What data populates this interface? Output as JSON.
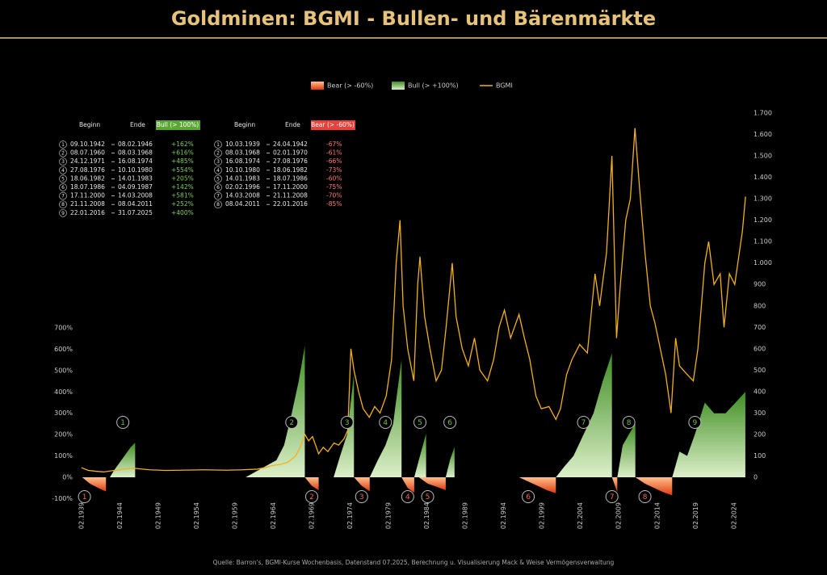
{
  "chart_data": {
    "type": "combo",
    "title": "Goldminen: BGMI - Bullen- und Bärenmärkte",
    "source": "Quelle: Barron's, BGMI-Kurse Wochenbasis, Datenstand 07.2025, Berechnung u. Visualisierung Mack & Weise Vermögensverwaltung",
    "xlim": [
      1938.7,
      2025.8
    ],
    "xticks": [
      {
        "value": 1939.1,
        "label": "02.1939"
      },
      {
        "value": 1944.1,
        "label": "02.1944"
      },
      {
        "value": 1949.1,
        "label": "02.1949"
      },
      {
        "value": 1954.1,
        "label": "02.1954"
      },
      {
        "value": 1959.1,
        "label": "02.1959"
      },
      {
        "value": 1964.1,
        "label": "02.1964"
      },
      {
        "value": 1969.1,
        "label": "02.1969"
      },
      {
        "value": 1974.1,
        "label": "02.1974"
      },
      {
        "value": 1979.1,
        "label": "02.1979"
      },
      {
        "value": 1984.1,
        "label": "02.1984"
      },
      {
        "value": 1989.1,
        "label": "02.1989"
      },
      {
        "value": 1994.1,
        "label": "02.1994"
      },
      {
        "value": 1999.1,
        "label": "02.1999"
      },
      {
        "value": 2004.1,
        "label": "02.2004"
      },
      {
        "value": 2009.1,
        "label": "02.2009"
      },
      {
        "value": 2014.1,
        "label": "02.2014"
      },
      {
        "value": 2019.1,
        "label": "02.2019"
      },
      {
        "value": 2024.1,
        "label": "02.2024"
      }
    ],
    "ylim": [
      -100,
      700
    ],
    "yticks": [
      {
        "value": -100,
        "label": "-100%"
      },
      {
        "value": 0,
        "label": "0%"
      },
      {
        "value": 100,
        "label": "100%"
      },
      {
        "value": 200,
        "label": "200%"
      },
      {
        "value": 300,
        "label": "300%"
      },
      {
        "value": 400,
        "label": "400%"
      },
      {
        "value": 500,
        "label": "500%"
      },
      {
        "value": 600,
        "label": "600%"
      },
      {
        "value": 700,
        "label": "700%"
      }
    ],
    "y2lim": [
      0,
      1700
    ],
    "y2ticks": [
      0,
      100,
      200,
      300,
      400,
      500,
      600,
      700,
      800,
      900,
      {
        "value": 1000,
        "label": "1.000"
      },
      {
        "value": 1100,
        "label": "1.100"
      },
      {
        "value": 1200,
        "label": "1.200"
      },
      {
        "value": 1300,
        "label": "1.300"
      },
      {
        "value": 1400,
        "label": "1.400"
      },
      {
        "value": 1500,
        "label": "1.500"
      },
      {
        "value": 1600,
        "label": "1.600"
      },
      {
        "value": 1700,
        "label": "1.700"
      }
    ],
    "series": [
      {
        "name": "Bear (> -60%)",
        "type": "area",
        "color": "#f06a2a",
        "x": [
          1939.2,
          1940.2,
          1941.3,
          1942.3,
          null,
          1968.2,
          1969.1,
          1970.0,
          null,
          1974.6,
          1975.6,
          1976.65,
          null,
          1980.8,
          1981.6,
          1982.45,
          null,
          1983.05,
          1984.2,
          1985.4,
          1986.55,
          null,
          1996.1,
          1997.3,
          1998.5,
          1999.7,
          2000.9,
          null,
          2008.2,
          2008.9,
          null,
          2011.25,
          2012.5,
          2013.7,
          2014.9,
          2016.05
        ],
        "values": [
          0,
          -30,
          -50,
          -67,
          null,
          0,
          -40,
          -61,
          null,
          0,
          -40,
          -66,
          null,
          0,
          -50,
          -73,
          null,
          0,
          -30,
          -45,
          -60,
          null,
          0,
          -20,
          -40,
          -60,
          -75,
          null,
          0,
          -70,
          null,
          0,
          -30,
          -50,
          -70,
          -85
        ]
      },
      {
        "name": "Bull (> +100%)",
        "type": "area",
        "color": "#5aa832",
        "x": [
          1942.8,
          1943.5,
          1944.5,
          1945.5,
          1946.1,
          null,
          1960.5,
          1962,
          1963.5,
          1964.5,
          1965.5,
          1966.5,
          1967.4,
          1968.2,
          null,
          1971.95,
          1972.8,
          1973.7,
          1974.6,
          null,
          1976.65,
          1977.7,
          1978.7,
          1979.7,
          1980.8,
          null,
          1982.45,
          1983.2,
          1984.0,
          null,
          1986.55,
          1987.1,
          1987.7,
          null,
          2000.9,
          2002,
          2003.2,
          2004.5,
          2005.8,
          2007,
          2008.2,
          null,
          2008.9,
          2009.6,
          2010.4,
          2011.25,
          null,
          2016.05,
          2017,
          2018,
          2019,
          2020.3,
          2021.5,
          2023,
          2024.3,
          2025.58
        ],
        "values": [
          0,
          40,
          90,
          140,
          162,
          null,
          0,
          30,
          60,
          80,
          150,
          300,
          450,
          616,
          null,
          0,
          100,
          200,
          485,
          null,
          0,
          80,
          150,
          250,
          554,
          null,
          0,
          100,
          205,
          null,
          0,
          80,
          142,
          null,
          0,
          50,
          100,
          200,
          300,
          450,
          581,
          null,
          0,
          150,
          200,
          252,
          null,
          0,
          120,
          100,
          200,
          350,
          300,
          300,
          350,
          400
        ]
      },
      {
        "name": "BGMI",
        "type": "line",
        "axis": "y2",
        "color": "#f2b01e",
        "x": [
          1939.1,
          1940,
          1941,
          1942,
          1943,
          1944,
          1945,
          1946,
          1948,
          1950,
          1952,
          1955,
          1958,
          1960,
          1962,
          1963,
          1964,
          1965,
          1966,
          1967,
          1967.6,
          1968.2,
          1968.7,
          1969.2,
          1970,
          1970.6,
          1971.2,
          1972,
          1972.6,
          1973.3,
          1973.8,
          1974.2,
          1974.6,
          1975.2,
          1975.8,
          1976.6,
          1977.3,
          1978,
          1978.8,
          1979.5,
          1980.1,
          1980.6,
          1981,
          1981.6,
          1982.4,
          1982.9,
          1983.2,
          1983.8,
          1984.5,
          1985.3,
          1986,
          1986.6,
          1987.4,
          1987.9,
          1988.7,
          1989.5,
          1990.3,
          1991,
          1992,
          1992.8,
          1993.5,
          1994.2,
          1995,
          1996.1,
          1996.8,
          1997.5,
          1998.3,
          1999,
          2000,
          2000.9,
          2001.5,
          2002.3,
          2003,
          2004,
          2005,
          2006,
          2006.6,
          2007.5,
          2008.2,
          2008.8,
          2009.3,
          2010,
          2010.6,
          2011.2,
          2011.8,
          2012.5,
          2013.2,
          2013.8,
          2014.5,
          2015.2,
          2015.9,
          2016.5,
          2017,
          2018,
          2018.8,
          2019.4,
          2020.3,
          2020.8,
          2021.5,
          2022.3,
          2022.8,
          2023.5,
          2024.2,
          2024.8,
          2025.2,
          2025.6
        ],
        "values": [
          45,
          32,
          28,
          25,
          30,
          35,
          40,
          42,
          35,
          32,
          33,
          35,
          33,
          35,
          38,
          45,
          55,
          60,
          70,
          100,
          140,
          200,
          170,
          190,
          110,
          140,
          120,
          160,
          150,
          180,
          220,
          600,
          500,
          400,
          320,
          280,
          330,
          300,
          380,
          550,
          1000,
          1200,
          800,
          600,
          450,
          900,
          1030,
          750,
          600,
          450,
          500,
          700,
          1000,
          750,
          600,
          520,
          650,
          500,
          450,
          550,
          700,
          780,
          650,
          760,
          650,
          550,
          380,
          320,
          330,
          270,
          320,
          480,
          550,
          620,
          580,
          950,
          800,
          1050,
          1500,
          650,
          900,
          1200,
          1300,
          1630,
          1350,
          1050,
          800,
          720,
          600,
          480,
          300,
          650,
          520,
          480,
          450,
          600,
          1000,
          1100,
          900,
          950,
          700,
          950,
          900,
          1050,
          1150,
          1310
        ]
      }
    ],
    "bull_markers": [
      {
        "label": "1",
        "x": 1944.5
      },
      {
        "label": "2",
        "x": 1966.5
      },
      {
        "label": "3",
        "x": 1973.7
      },
      {
        "label": "4",
        "x": 1978.7
      },
      {
        "label": "5",
        "x": 1983.2
      },
      {
        "label": "6",
        "x": 1987.1
      },
      {
        "label": "7",
        "x": 2004.5
      },
      {
        "label": "8",
        "x": 2010.4
      },
      {
        "label": "9",
        "x": 2019
      }
    ],
    "bear_markers": [
      {
        "label": "1",
        "x": 1939.5
      },
      {
        "label": "2",
        "x": 1969.1
      },
      {
        "label": "3",
        "x": 1975.6
      },
      {
        "label": "4",
        "x": 1981.6
      },
      {
        "label": "5",
        "x": 1984.2
      },
      {
        "label": "6",
        "x": 1997.3
      },
      {
        "label": "7",
        "x": 2008.2
      },
      {
        "label": "8",
        "x": 2012.5
      }
    ],
    "bull_table": {
      "headers": [
        "Beginn",
        "Ende",
        "Bull (> 100%)"
      ],
      "rows": [
        [
          "1",
          "09.10.1942",
          "08.02.1946",
          "+162%"
        ],
        [
          "2",
          "08.07.1960",
          "08.03.1968",
          "+616%"
        ],
        [
          "3",
          "24.12.1971",
          "16.08.1974",
          "+485%"
        ],
        [
          "4",
          "27.08.1976",
          "10.10.1980",
          "+554%"
        ],
        [
          "5",
          "18.06.1982",
          "14.01.1983",
          "+205%"
        ],
        [
          "6",
          "18.07.1986",
          "04.09.1987",
          "+142%"
        ],
        [
          "7",
          "17.11.2000",
          "14.03.2008",
          "+581%"
        ],
        [
          "8",
          "21.11.2008",
          "08.04.2011",
          "+252%"
        ],
        [
          "9",
          "22.01.2016",
          "31.07.2025",
          "+400%"
        ]
      ]
    },
    "bear_table": {
      "headers": [
        "Beginn",
        "Ende",
        "Bear (> -60%)"
      ],
      "rows": [
        [
          "1",
          "10.03.1939",
          "24.04.1942",
          "-67%"
        ],
        [
          "2",
          "08.03.1968",
          "02.01.1970",
          "-61%"
        ],
        [
          "3",
          "16.08.1974",
          "27.08.1976",
          "-66%"
        ],
        [
          "4",
          "10.10.1980",
          "18.06.1982",
          "-73%"
        ],
        [
          "5",
          "14.01.1983",
          "18.07.1986",
          "-60%"
        ],
        [
          "6",
          "02.02.1996",
          "17.11.2000",
          "-75%"
        ],
        [
          "7",
          "14.03.2008",
          "21.11.2008",
          "-70%"
        ],
        [
          "8",
          "08.04.2011",
          "22.01.2016",
          "-85%"
        ]
      ]
    }
  }
}
